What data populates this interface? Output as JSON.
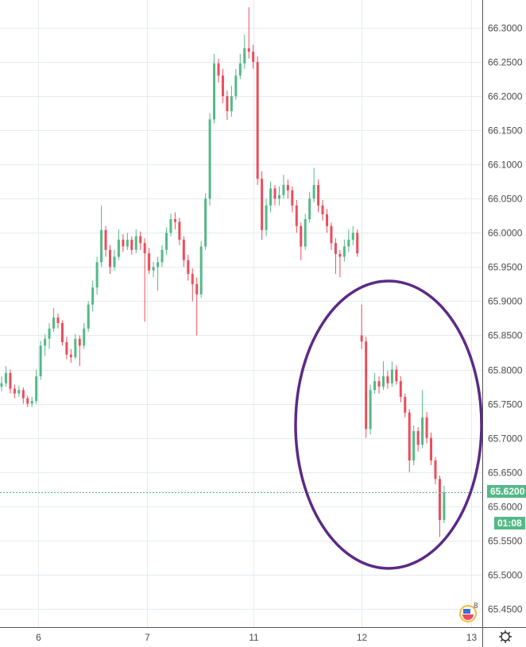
{
  "chart_data": {
    "type": "candlestick",
    "title": "",
    "xlabel": "",
    "ylabel": "",
    "ylim": [
      65.42,
      66.34
    ],
    "grid": true,
    "x_ticks": [
      {
        "label": "6",
        "index": 8.4
      },
      {
        "label": "7",
        "index": 33.5
      },
      {
        "label": "11",
        "index": 58.1
      },
      {
        "label": "12",
        "index": 83
      },
      {
        "label": "13",
        "index": 108.3
      }
    ],
    "y_ticks": [
      "66.3000",
      "66.2500",
      "66.2000",
      "66.1500",
      "66.1000",
      "66.0500",
      "66.0000",
      "65.9500",
      "65.9000",
      "65.8500",
      "65.8000",
      "65.7500",
      "65.7000",
      "65.6500",
      "65.6000",
      "65.5500",
      "65.5000",
      "65.4500"
    ],
    "up_color": "#53b987",
    "down_color": "#eb4d5c",
    "ohlc": [
      [
        65.775,
        65.79,
        65.768,
        65.78
      ],
      [
        65.78,
        65.805,
        65.775,
        65.795
      ],
      [
        65.795,
        65.8,
        65.765,
        65.772
      ],
      [
        65.772,
        65.778,
        65.758,
        65.765
      ],
      [
        65.765,
        65.776,
        65.76,
        65.77
      ],
      [
        65.77,
        65.774,
        65.75,
        65.758
      ],
      [
        65.758,
        65.762,
        65.745,
        65.75
      ],
      [
        65.75,
        65.76,
        65.745,
        65.754
      ],
      [
        65.754,
        65.8,
        65.75,
        65.79
      ],
      [
        65.79,
        65.842,
        65.785,
        65.835
      ],
      [
        65.835,
        65.852,
        65.82,
        65.845
      ],
      [
        65.845,
        65.868,
        65.83,
        65.86
      ],
      [
        65.86,
        65.89,
        65.855,
        65.876
      ],
      [
        65.876,
        65.882,
        65.86,
        65.868
      ],
      [
        65.868,
        65.872,
        65.835,
        65.84
      ],
      [
        65.84,
        65.848,
        65.815,
        65.822
      ],
      [
        65.822,
        65.83,
        65.81,
        65.818
      ],
      [
        65.818,
        65.852,
        65.815,
        65.845
      ],
      [
        65.845,
        65.85,
        65.805,
        65.835
      ],
      [
        65.835,
        65.868,
        65.83,
        65.86
      ],
      [
        65.86,
        65.9,
        65.855,
        65.895
      ],
      [
        65.895,
        65.93,
        65.885,
        65.92
      ],
      [
        65.92,
        65.965,
        65.91,
        65.957
      ],
      [
        65.957,
        66.04,
        65.95,
        66.004
      ],
      [
        66.004,
        66.01,
        65.965,
        65.975
      ],
      [
        65.975,
        65.982,
        65.94,
        65.95
      ],
      [
        65.95,
        65.975,
        65.945,
        65.965
      ],
      [
        65.965,
        66.005,
        65.96,
        65.99
      ],
      [
        65.99,
        65.998,
        65.972,
        65.98
      ],
      [
        65.98,
        66.0,
        65.975,
        65.99
      ],
      [
        65.99,
        65.995,
        65.968,
        65.975
      ],
      [
        65.975,
        66.005,
        65.97,
        65.995
      ],
      [
        65.995,
        66.002,
        65.975,
        65.985
      ],
      [
        65.985,
        65.992,
        65.87,
        65.97
      ],
      [
        65.97,
        65.978,
        65.94,
        65.945
      ],
      [
        65.945,
        65.958,
        65.935,
        65.95
      ],
      [
        65.95,
        65.965,
        65.915,
        65.957
      ],
      [
        65.957,
        65.982,
        65.95,
        65.975
      ],
      [
        65.975,
        66.008,
        65.968,
        66.0
      ],
      [
        66.0,
        66.028,
        65.995,
        66.02
      ],
      [
        66.02,
        66.03,
        66.005,
        66.016
      ],
      [
        66.016,
        66.022,
        65.982,
        65.99
      ],
      [
        65.99,
        65.995,
        65.95,
        65.96
      ],
      [
        65.96,
        65.968,
        65.93,
        65.94
      ],
      [
        65.94,
        65.948,
        65.9,
        65.925
      ],
      [
        65.925,
        65.935,
        65.85,
        65.91
      ],
      [
        65.91,
        65.988,
        65.905,
        65.98
      ],
      [
        65.98,
        66.058,
        65.975,
        66.05
      ],
      [
        66.05,
        66.175,
        66.04,
        66.166
      ],
      [
        66.166,
        66.262,
        66.16,
        66.248
      ],
      [
        66.248,
        66.255,
        66.22,
        66.23
      ],
      [
        66.23,
        66.24,
        66.19,
        66.2
      ],
      [
        66.2,
        66.208,
        66.165,
        66.178
      ],
      [
        66.178,
        66.215,
        66.17,
        66.2
      ],
      [
        66.2,
        66.24,
        66.195,
        66.23
      ],
      [
        66.23,
        66.262,
        66.225,
        66.248
      ],
      [
        66.248,
        66.29,
        66.24,
        66.27
      ],
      [
        66.27,
        66.33,
        66.255,
        66.265
      ],
      [
        66.265,
        66.275,
        66.24,
        66.25
      ],
      [
        66.25,
        66.258,
        66.07,
        66.079
      ],
      [
        66.079,
        66.09,
        65.99,
        66.004
      ],
      [
        66.004,
        66.05,
        65.995,
        66.04
      ],
      [
        66.04,
        66.075,
        66.03,
        66.065
      ],
      [
        66.065,
        66.07,
        66.04,
        66.05
      ],
      [
        66.05,
        66.068,
        66.04,
        66.055
      ],
      [
        66.055,
        66.085,
        66.05,
        66.07
      ],
      [
        66.07,
        66.078,
        66.05,
        66.062
      ],
      [
        66.062,
        66.068,
        66.03,
        66.04
      ],
      [
        66.04,
        66.048,
        66.0,
        66.01
      ],
      [
        66.01,
        66.015,
        65.96,
        65.98
      ],
      [
        65.98,
        66.028,
        65.975,
        66.02
      ],
      [
        66.02,
        66.06,
        66.015,
        66.05
      ],
      [
        66.05,
        66.095,
        66.045,
        66.07
      ],
      [
        66.07,
        66.078,
        66.03,
        66.04
      ],
      [
        66.04,
        66.048,
        66.018,
        66.027
      ],
      [
        66.027,
        66.035,
        66.0,
        66.01
      ],
      [
        66.01,
        66.015,
        65.975,
        65.985
      ],
      [
        65.985,
        65.992,
        65.94,
        65.969
      ],
      [
        65.969,
        65.975,
        65.935,
        65.965
      ],
      [
        65.965,
        65.99,
        65.958,
        65.98
      ],
      [
        65.98,
        66.005,
        65.972,
        65.99
      ],
      [
        65.99,
        66.01,
        65.982,
        66.0
      ],
      [
        66.0,
        66.005,
        65.965,
        65.97
      ],
      [
        65.85,
        65.895,
        65.83,
        65.841
      ],
      [
        65.841,
        65.848,
        65.7,
        65.713
      ],
      [
        65.713,
        65.778,
        65.705,
        65.77
      ],
      [
        65.77,
        65.795,
        65.765,
        65.783
      ],
      [
        65.783,
        65.79,
        65.765,
        65.775
      ],
      [
        65.775,
        65.812,
        65.77,
        65.79
      ],
      [
        65.79,
        65.798,
        65.772,
        65.78
      ],
      [
        65.78,
        65.812,
        65.775,
        65.8
      ],
      [
        65.8,
        65.806,
        65.778,
        65.783
      ],
      [
        65.783,
        65.79,
        65.752,
        65.76
      ],
      [
        65.76,
        65.765,
        65.73,
        65.737
      ],
      [
        65.737,
        65.742,
        65.65,
        65.667
      ],
      [
        65.667,
        65.718,
        65.66,
        65.71
      ],
      [
        65.71,
        65.716,
        65.68,
        65.69
      ],
      [
        65.69,
        65.77,
        65.685,
        65.73
      ],
      [
        65.73,
        65.738,
        65.692,
        65.7
      ],
      [
        65.7,
        65.708,
        65.66,
        65.667
      ],
      [
        65.667,
        65.672,
        65.632,
        65.64
      ],
      [
        65.64,
        65.645,
        65.555,
        65.58
      ],
      [
        65.58,
        65.63,
        65.575,
        65.62
      ]
    ],
    "current_price": 65.62,
    "current_price_label": "65.6200",
    "countdown": "01:08",
    "annotation_color": "#5b2a86"
  },
  "badges": {
    "events_count": "8"
  }
}
